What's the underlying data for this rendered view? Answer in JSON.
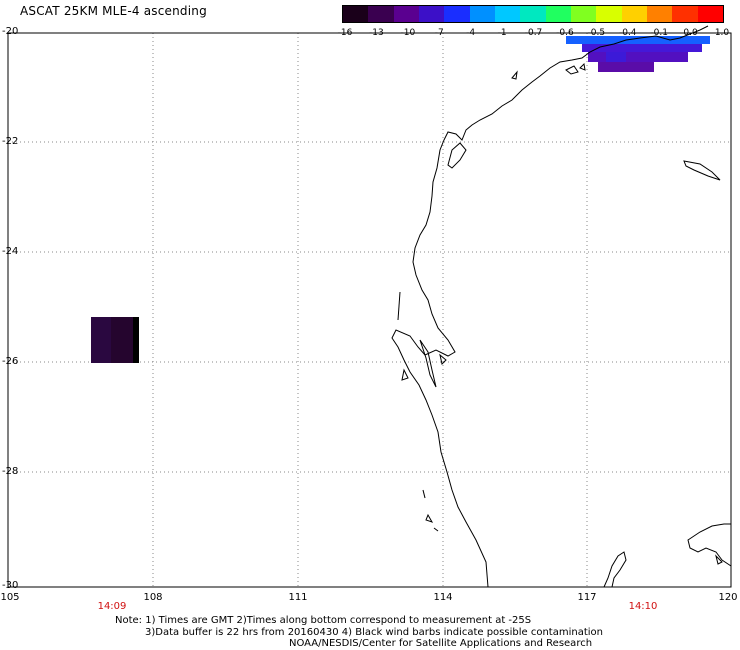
{
  "title": "ASCAT 25KM MLE-4 ascending",
  "colorbar": {
    "colors": [
      "#1a001a",
      "#3a0050",
      "#5a0090",
      "#3c10c8",
      "#1a2eff",
      "#0090ff",
      "#00c8ff",
      "#00e8c0",
      "#20ff60",
      "#80ff20",
      "#d8ff00",
      "#ffd000",
      "#ff8000",
      "#ff3000",
      "#ff0000"
    ],
    "ticks": [
      "-16",
      "-13",
      "-10",
      "-7",
      "-4",
      "-1",
      "-0.7",
      "-0.6",
      "-0.5",
      "-0.4",
      "-0.1",
      "0.0",
      "1.0"
    ]
  },
  "y_ticks": [
    "-20",
    "-22",
    "-24",
    "-26",
    "-28",
    "-30"
  ],
  "x_ticks": [
    "105",
    "108",
    "111",
    "114",
    "117",
    "120"
  ],
  "times": [
    "14:09",
    "14:10"
  ],
  "notes": [
    "Note: 1) Times are GMT 2)Times along bottom correspond to measurement at -25S",
    "3)Data buffer is 22 hrs from 20160430 4) Black wind barbs indicate possible contamination",
    "NOAA/NESDIS/Center for Satellite Applications and Research"
  ]
}
